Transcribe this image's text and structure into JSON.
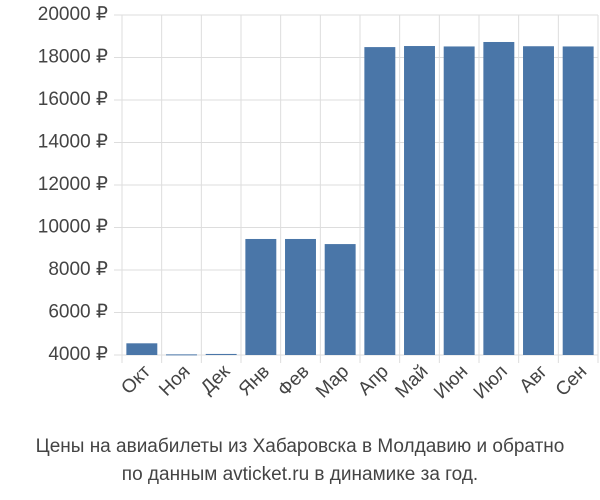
{
  "chart_data": {
    "type": "bar",
    "title_lines": [
      "Цены на авиабилеты из Хабаровска в Молдавию и обратно",
      "по данным avticket.ru в динамике за год."
    ],
    "categories": [
      "Окт",
      "Ноя",
      "Дек",
      "Янв",
      "Фев",
      "Мар",
      "Апр",
      "Май",
      "Июн",
      "Июл",
      "Авг",
      "Сен"
    ],
    "values": [
      4550,
      4030,
      4050,
      9460,
      9460,
      9220,
      18490,
      18540,
      18520,
      18730,
      18530,
      18520
    ],
    "color": "#4a76a8",
    "ylim": [
      4000,
      20000
    ],
    "yticks": [
      {
        "value": 4000,
        "label": "4000 ₽"
      },
      {
        "value": 6000,
        "label": "6000 ₽"
      },
      {
        "value": 8000,
        "label": "8000 ₽"
      },
      {
        "value": 10000,
        "label": "10000 ₽"
      },
      {
        "value": 12000,
        "label": "12000 ₽"
      },
      {
        "value": 14000,
        "label": "14000 ₽"
      },
      {
        "value": 16000,
        "label": "16000 ₽"
      },
      {
        "value": 18000,
        "label": "18000 ₽"
      },
      {
        "value": 20000,
        "label": "20000 ₽"
      }
    ],
    "grid": true
  }
}
